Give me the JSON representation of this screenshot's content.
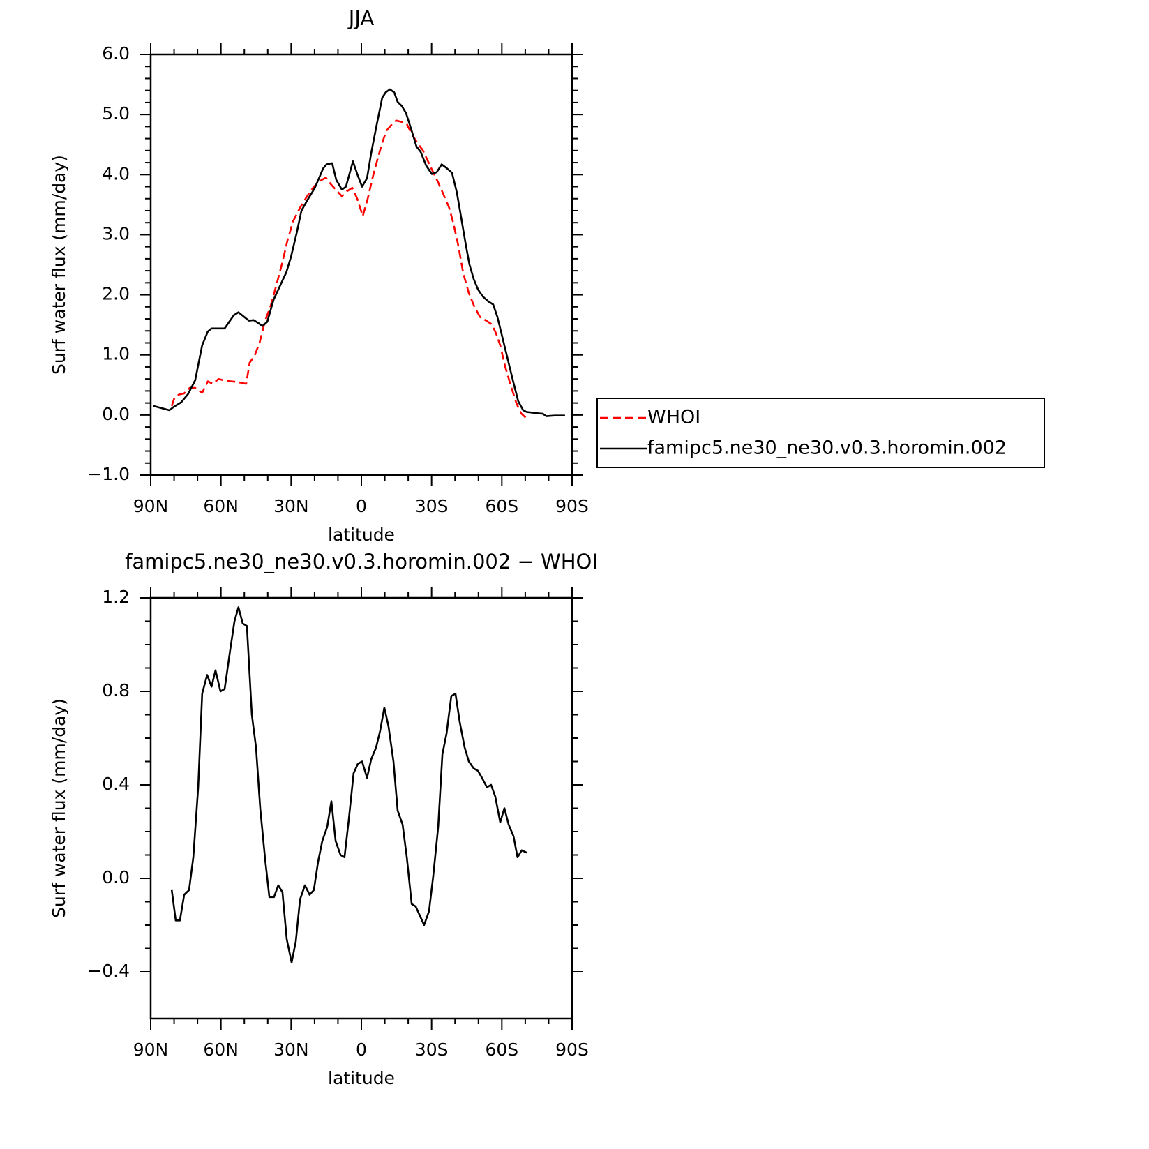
{
  "chart_data": [
    {
      "type": "line",
      "title": "JJA",
      "xlabel": "latitude",
      "ylabel": "Surf water flux (mm/day)",
      "xlim": [
        90,
        -90
      ],
      "xticks": [
        {
          "value": 90,
          "label": "90N"
        },
        {
          "value": 60,
          "label": "60N"
        },
        {
          "value": 30,
          "label": "30N"
        },
        0,
        {
          "value": -30,
          "label": "30S"
        },
        {
          "value": -60,
          "label": "60S"
        },
        {
          "value": -90,
          "label": "90S"
        }
      ],
      "ylim": [
        -1,
        6
      ],
      "yticks": [
        {
          "value": -1,
          "label": "−1.0"
        },
        {
          "value": 0,
          "label": "0.0"
        },
        {
          "value": 1,
          "label": "1.0"
        },
        {
          "value": 2,
          "label": "2.0"
        },
        {
          "value": 3,
          "label": "3.0"
        },
        {
          "value": 4,
          "label": "4.0"
        },
        {
          "value": 5,
          "label": "5.0"
        },
        {
          "value": 6,
          "label": "6.0"
        }
      ],
      "legend": "right",
      "series": [
        {
          "name": "WHOI",
          "color": "#ff0000",
          "dash": true,
          "x": [
            81,
            80,
            78,
            75.7,
            73.3,
            71,
            68,
            65.6,
            63.5,
            61,
            59,
            56,
            53,
            49.2,
            47.7,
            45.6,
            43.5,
            41.1,
            38.7,
            36.4,
            34,
            31.6,
            29.2,
            26.2,
            23.2,
            20.3,
            17.9,
            15.2,
            12.8,
            10.7,
            8.3,
            6.3,
            3.9,
            1.8,
            -0.6,
            -2.7,
            -4.8,
            -6.9,
            -8.9,
            -10.7,
            -13.1,
            -14.9,
            -17,
            -19.4,
            -21.5,
            -23.8,
            -26.2,
            -28,
            -30.4,
            -32.8,
            -35.2,
            -37.5,
            -39.3,
            -41.4,
            -43.5,
            -45.9,
            -48.3,
            -50.7,
            -53.3,
            -55.7,
            -57.5,
            -59.3,
            -61.4,
            -63.8,
            -66.2,
            -68.2,
            -70.6
          ],
          "values": [
            0.15,
            0.27,
            0.34,
            0.36,
            0.45,
            0.45,
            0.37,
            0.56,
            0.52,
            0.6,
            0.58,
            0.56,
            0.55,
            0.52,
            0.87,
            0.99,
            1.2,
            1.57,
            1.82,
            2.15,
            2.5,
            2.9,
            3.22,
            3.45,
            3.64,
            3.8,
            3.89,
            3.95,
            3.83,
            3.74,
            3.64,
            3.72,
            3.78,
            3.6,
            3.31,
            3.6,
            3.95,
            4.26,
            4.53,
            4.73,
            4.84,
            4.9,
            4.88,
            4.84,
            4.68,
            4.53,
            4.41,
            4.26,
            4.06,
            3.87,
            3.66,
            3.45,
            3.19,
            2.82,
            2.36,
            2.03,
            1.8,
            1.63,
            1.57,
            1.51,
            1.36,
            1.16,
            0.81,
            0.49,
            0.2,
            0.03,
            -0.06
          ]
        },
        {
          "name": "famipc5.ne30_ne30.v0.3.horomin.002",
          "color": "#000000",
          "x": [
            88.8,
            82,
            80,
            77,
            74,
            71,
            68,
            65.6,
            64,
            58.4,
            54.5,
            52.5,
            50,
            48,
            46,
            44,
            42.3,
            40.2,
            37.5,
            35,
            32,
            30,
            27.7,
            25.6,
            23,
            20,
            18,
            16.4,
            14.9,
            12.5,
            10.7,
            8.3,
            6.6,
            3.6,
            1.5,
            -0.3,
            -2.4,
            -4.2,
            -6.5,
            -8.9,
            -10.4,
            -12.2,
            -14,
            -15.5,
            -17.3,
            -19.1,
            -21.5,
            -23.5,
            -25.3,
            -27.7,
            -30.1,
            -32.2,
            -34.3,
            -36.4,
            -38.7,
            -40.8,
            -42.9,
            -44.7,
            -46.2,
            -48,
            -49.8,
            -51.9,
            -54.2,
            -56.3,
            -58.1,
            -60.2,
            -62.3,
            -64.7,
            -67,
            -69.1,
            -70.6,
            -75.1,
            -77.5,
            -79,
            -82.5,
            -87
          ],
          "values": [
            0.15,
            0.08,
            0.14,
            0.21,
            0.35,
            0.58,
            1.16,
            1.39,
            1.44,
            1.44,
            1.66,
            1.71,
            1.63,
            1.57,
            1.58,
            1.53,
            1.48,
            1.55,
            1.92,
            2.13,
            2.38,
            2.64,
            3.02,
            3.4,
            3.58,
            3.77,
            3.95,
            4.1,
            4.17,
            4.19,
            3.91,
            3.75,
            3.8,
            4.22,
            3.98,
            3.8,
            3.94,
            4.36,
            4.82,
            5.28,
            5.37,
            5.42,
            5.37,
            5.21,
            5.14,
            5.02,
            4.73,
            4.47,
            4.38,
            4.15,
            4.01,
            4.04,
            4.17,
            4.11,
            4.03,
            3.7,
            3.22,
            2.81,
            2.5,
            2.26,
            2.09,
            1.97,
            1.89,
            1.84,
            1.63,
            1.3,
            0.96,
            0.58,
            0.23,
            0.08,
            0.05,
            0.03,
            0.02,
            -0.02,
            -0.01,
            -0.01
          ]
        }
      ]
    },
    {
      "type": "line",
      "title": "famipc5.ne30_ne30.v0.3.horomin.002 − WHOI",
      "xlabel": "latitude",
      "ylabel": "Surf water flux (mm/day)",
      "xlim": [
        90,
        -90
      ],
      "xticks": [
        {
          "value": 90,
          "label": "90N"
        },
        {
          "value": 60,
          "label": "60N"
        },
        {
          "value": 30,
          "label": "30N"
        },
        0,
        {
          "value": -30,
          "label": "30S"
        },
        {
          "value": -60,
          "label": "60S"
        },
        {
          "value": -90,
          "label": "90S"
        }
      ],
      "ylim": [
        -0.6,
        1.2
      ],
      "yticks": [
        {
          "value": -0.4,
          "label": "−0.4"
        },
        {
          "value": 0,
          "label": "0.0"
        },
        0.4,
        0.8,
        1.2
      ],
      "series": [
        {
          "color": "#000000",
          "x": [
            81,
            79.3,
            77.5,
            75.7,
            73.6,
            71.8,
            69.7,
            68,
            65.9,
            64,
            62.3,
            60.2,
            58.4,
            56,
            54.2,
            52.5,
            50.7,
            48.9,
            46.8,
            45,
            43.2,
            41.1,
            39.3,
            37.3,
            35.5,
            33.7,
            31.9,
            29.8,
            28,
            26.2,
            24.1,
            22.1,
            20.3,
            18.5,
            16.7,
            14.6,
            12.8,
            11,
            8.9,
            7.2,
            5.4,
            3.3,
            1.5,
            -0.3,
            -2.4,
            -4.2,
            -6.3,
            -8,
            -9.8,
            -11.6,
            -13.7,
            -15.5,
            -17.6,
            -19.4,
            -21.5,
            -23.2,
            -25,
            -26.8,
            -28.9,
            -30.7,
            -32.8,
            -34.6,
            -36.4,
            -38.4,
            -40.2,
            -42,
            -44.1,
            -45.9,
            -48,
            -49.8,
            -51.5,
            -53.6,
            -55.4,
            -57.2,
            -59.3,
            -61.1,
            -62.9,
            -65,
            -66.7,
            -68.5,
            -70.6
          ],
          "values": [
            -0.05,
            -0.18,
            -0.18,
            -0.07,
            -0.05,
            0.09,
            0.39,
            0.79,
            0.87,
            0.82,
            0.89,
            0.8,
            0.81,
            0.98,
            1.1,
            1.16,
            1.09,
            1.08,
            0.7,
            0.56,
            0.3,
            0.08,
            -0.08,
            -0.08,
            -0.03,
            -0.06,
            -0.26,
            -0.36,
            -0.27,
            -0.09,
            -0.03,
            -0.07,
            -0.05,
            0.07,
            0.16,
            0.22,
            0.33,
            0.16,
            0.1,
            0.09,
            0.25,
            0.45,
            0.49,
            0.5,
            0.43,
            0.51,
            0.56,
            0.63,
            0.73,
            0.65,
            0.5,
            0.29,
            0.23,
            0.09,
            -0.11,
            -0.12,
            -0.16,
            -0.2,
            -0.14,
            0.01,
            0.22,
            0.53,
            0.62,
            0.78,
            0.79,
            0.67,
            0.56,
            0.5,
            0.47,
            0.46,
            0.43,
            0.39,
            0.4,
            0.35,
            0.24,
            0.3,
            0.23,
            0.18,
            0.09,
            0.12,
            0.11
          ]
        }
      ]
    }
  ]
}
